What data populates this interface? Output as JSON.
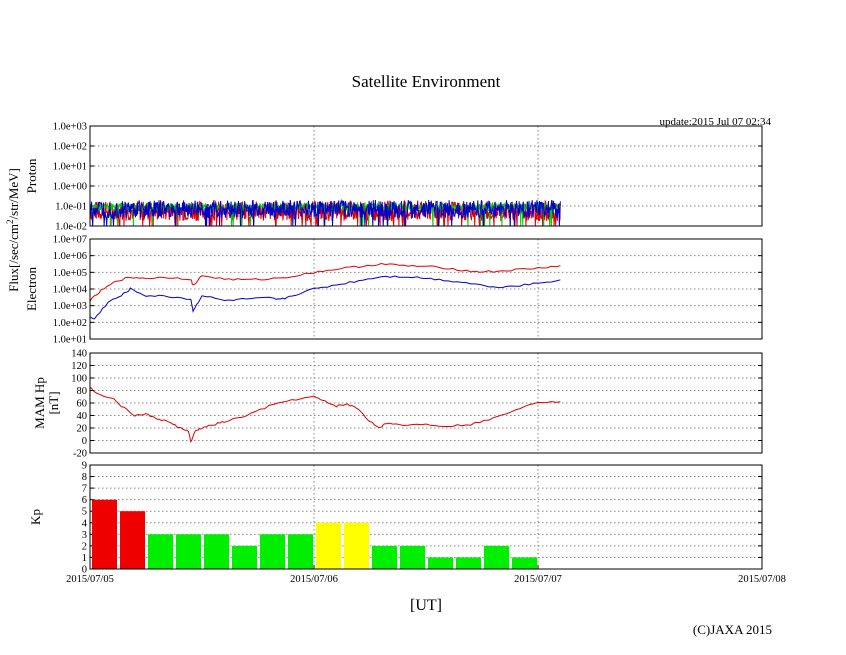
{
  "title": "Satellite Environment",
  "update_text": "update:2015 Jul 07 02:34",
  "copyright": "(C)JAXA 2015",
  "xlabel": "[UT]",
  "shared_ylabel": "Flux[/sec/cm",
  "shared_ylabel_sup": "2",
  "shared_ylabel_rest": "/str/MeV]",
  "x_ticks": [
    "2015/07/05",
    "2015/07/06",
    "2015/07/07",
    "2015/07/08"
  ],
  "chart_data": [
    {
      "id": "proton",
      "type": "line",
      "ylabel": "Proton",
      "scale": "log",
      "ylim_exp": [
        -2,
        3
      ],
      "y_ticks": [
        "1.0e+03",
        "1.0e+02",
        "1.0e+01",
        "1.0e+00",
        "1.0e-01",
        "1.0e-02"
      ],
      "xlim_days": [
        0,
        3
      ],
      "series": [
        {
          "name": "red",
          "color": "#e00000",
          "center_exp": -1.25,
          "noise_exp": 0.5,
          "end_day": 2.1
        },
        {
          "name": "green",
          "color": "#00cc00",
          "center_exp": -1.05,
          "noise_exp": 0.2,
          "end_day": 2.1
        },
        {
          "name": "blue",
          "color": "#0000cc",
          "center_exp": -1.15,
          "noise_exp": 0.45,
          "end_day": 2.1
        }
      ]
    },
    {
      "id": "electron",
      "type": "line",
      "ylabel": "Electron",
      "scale": "log",
      "ylim_exp": [
        1,
        7
      ],
      "y_ticks": [
        "1.0e+07",
        "1.0e+06",
        "1.0e+05",
        "1.0e+04",
        "1.0e+03",
        "1.0e+02",
        "1.0e+01"
      ],
      "xlim_days": [
        0,
        3
      ],
      "series": [
        {
          "name": "red",
          "color": "#e00000",
          "x": [
            0,
            0.05,
            0.12,
            0.18,
            0.25,
            0.35,
            0.45,
            0.46,
            0.5,
            0.6,
            0.7,
            0.8,
            0.9,
            1.0,
            1.1,
            1.2,
            1.3,
            1.4,
            1.5,
            1.6,
            1.7,
            1.8,
            1.9,
            2.0,
            2.1
          ],
          "y": [
            3.3,
            3.9,
            4.5,
            4.7,
            4.65,
            4.7,
            4.6,
            4.2,
            4.8,
            4.6,
            4.55,
            4.6,
            4.75,
            5.0,
            5.2,
            5.35,
            5.5,
            5.4,
            5.35,
            5.25,
            5.05,
            5.05,
            5.15,
            5.25,
            5.4
          ]
        },
        {
          "name": "blue",
          "color": "#0000cc",
          "x": [
            0,
            0.02,
            0.08,
            0.14,
            0.18,
            0.25,
            0.35,
            0.45,
            0.46,
            0.5,
            0.6,
            0.7,
            0.8,
            0.85,
            0.9,
            1.0,
            1.1,
            1.2,
            1.3,
            1.4,
            1.5,
            1.6,
            1.7,
            1.8,
            1.9,
            2.0,
            2.1
          ],
          "y": [
            2.3,
            2.2,
            3.2,
            3.6,
            4.0,
            3.6,
            3.55,
            3.4,
            2.7,
            3.6,
            3.3,
            3.4,
            3.45,
            3.35,
            3.6,
            4.0,
            4.25,
            4.5,
            4.75,
            4.75,
            4.65,
            4.5,
            4.35,
            4.1,
            4.2,
            4.35,
            4.55
          ]
        }
      ]
    },
    {
      "id": "mamhp",
      "type": "line",
      "ylabel": "MAM Hp",
      "ylabel2": "[nT]",
      "ylim": [
        -20,
        140
      ],
      "y_ticks": [
        "140",
        "120",
        "100",
        "80",
        "60",
        "40",
        "20",
        "0",
        "-20"
      ],
      "xlim_days": [
        0,
        3
      ],
      "series": [
        {
          "name": "Hp",
          "color": "#e00000",
          "x": [
            0,
            0.03,
            0.1,
            0.14,
            0.2,
            0.25,
            0.3,
            0.35,
            0.4,
            0.44,
            0.45,
            0.47,
            0.5,
            0.55,
            0.6,
            0.7,
            0.8,
            0.9,
            1.0,
            1.05,
            1.1,
            1.15,
            1.2,
            1.25,
            1.3,
            1.32,
            1.4,
            1.5,
            1.6,
            1.7,
            1.8,
            1.9,
            2.0,
            2.1
          ],
          "y": [
            85,
            75,
            68,
            55,
            40,
            42,
            35,
            30,
            20,
            15,
            -3,
            15,
            20,
            25,
            30,
            40,
            55,
            65,
            70,
            62,
            55,
            58,
            50,
            30,
            20,
            28,
            25,
            26,
            23,
            26,
            35,
            50,
            62,
            62
          ]
        }
      ]
    },
    {
      "id": "kp",
      "type": "bar",
      "ylabel": "Kp",
      "ylim": [
        0,
        9
      ],
      "y_ticks": [
        "9",
        "8",
        "7",
        "6",
        "5",
        "4",
        "3",
        "2",
        "1",
        "0"
      ],
      "xlim_days": [
        0,
        3
      ],
      "bars_per_day": 8,
      "values": [
        6,
        5,
        3,
        3,
        3,
        2,
        3,
        3,
        4,
        4,
        2,
        2,
        1,
        1,
        2,
        1
      ],
      "colors": {
        "low": "#00ee00",
        "mid": "#ffff00",
        "high": "#ee0000"
      },
      "thresholds": {
        "mid": 4,
        "high": 5
      }
    }
  ]
}
